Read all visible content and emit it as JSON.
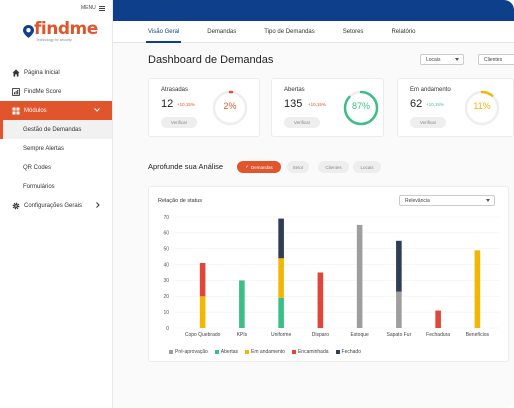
{
  "sidebar": {
    "menu_label": "MENU",
    "logo_text": "findme",
    "logo_tagline": "Technology for security",
    "items": [
      {
        "label": "Página Inicial",
        "icon": "home-icon"
      },
      {
        "label": "FindMe Score",
        "icon": "score-icon"
      },
      {
        "label": "Módulos",
        "icon": "modules-icon",
        "active": true
      },
      {
        "label": "Configurações Gerais",
        "icon": "gear-icon"
      }
    ],
    "sub_items": [
      "Gestão de Demandas",
      "Sempre Alertas",
      "QR Codes",
      "Formulários"
    ]
  },
  "tabs": [
    "Visão Geral",
    "Demandas",
    "Tipo de Demandas",
    "Setores",
    "Relatório"
  ],
  "page_title": "Dashboard de Demandas",
  "filters": {
    "locais": "Locais",
    "clientes": "Clientes"
  },
  "cards": [
    {
      "title": "Atrasadas",
      "value": "12",
      "delta": "+10,15%",
      "percent_label": "2%",
      "percent": 2,
      "color": "#e0552b",
      "delta_color": "#e0552b",
      "button": "Verificar"
    },
    {
      "title": "Abertas",
      "value": "135",
      "delta": "+10,15%",
      "percent_label": "87%",
      "percent": 87,
      "color": "#3bbf86",
      "delta_color": "#e0552b",
      "button": "Verificar"
    },
    {
      "title": "Em andamento",
      "value": "62",
      "delta": "+10,15%",
      "percent_label": "11%",
      "percent": 11,
      "color": "#f2b705",
      "delta_color": "#3bbf86",
      "button": "Verificar"
    }
  ],
  "section_title": "Aprofunde sua Análise",
  "chips": [
    "Demandas",
    "Setor",
    "Clientes",
    "Locais"
  ],
  "chart_title": "Relação de status",
  "chart_select": "Relevância",
  "chart_data": {
    "type": "bar",
    "stacked": true,
    "categories": [
      "Copo Quebrado",
      "KPIs",
      "Uniforme",
      "Disparo",
      "Estoque",
      "Sapato Fur",
      "Fechadura",
      "Benefícios"
    ],
    "ylim": [
      0,
      70
    ],
    "yticks": [
      0,
      10,
      20,
      30,
      40,
      50,
      60,
      70
    ],
    "grid": true,
    "legend_position": "bottom",
    "series": [
      {
        "name": "Pré-aprovação",
        "color": "#9e9e9e",
        "values": [
          0,
          0,
          0,
          0,
          65,
          23,
          0,
          0
        ]
      },
      {
        "name": "Abertas",
        "color": "#3bbf86",
        "values": [
          0,
          30,
          19,
          0,
          0,
          0,
          0,
          0
        ]
      },
      {
        "name": "Em andamento",
        "color": "#f2b705",
        "values": [
          20,
          0,
          25,
          0,
          0,
          0,
          0,
          49
        ]
      },
      {
        "name": "Encaminhada",
        "color": "#e0473a",
        "values": [
          21,
          0,
          0,
          35,
          0,
          0,
          11,
          0
        ]
      },
      {
        "name": "Fechado",
        "color": "#2f3e55",
        "values": [
          0,
          0,
          25,
          0,
          0,
          32,
          0,
          0
        ]
      }
    ]
  }
}
